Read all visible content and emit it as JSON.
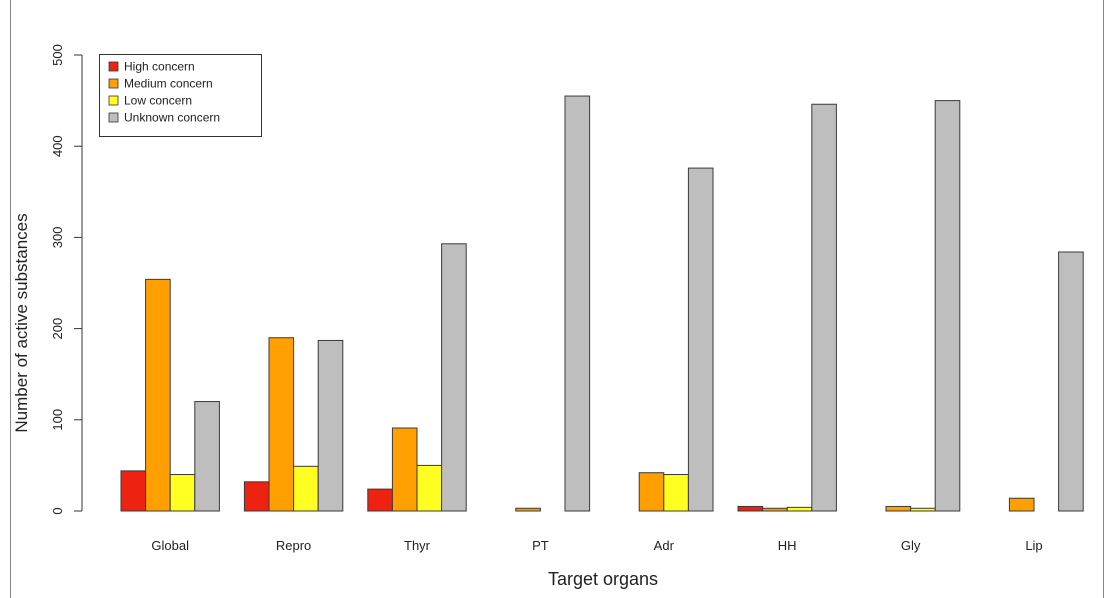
{
  "chart_data": {
    "type": "bar",
    "xlabel": "Target organs",
    "ylabel": "Number of active substances",
    "ylim": [
      0,
      500
    ],
    "yticks": [
      0,
      100,
      200,
      300,
      400,
      500
    ],
    "grid": false,
    "legend_position": "top-left",
    "categories": [
      "Global",
      "Repro",
      "Thyr",
      "PT",
      "Adr",
      "HH",
      "Gly",
      "Lip"
    ],
    "series": [
      {
        "name": "High concern",
        "color": "#ee2211",
        "values": [
          44,
          32,
          24,
          0,
          0,
          5,
          0,
          0
        ]
      },
      {
        "name": "Medium concern",
        "color": "#ff9f00",
        "values": [
          254,
          190,
          91,
          3,
          42,
          3,
          5,
          14
        ]
      },
      {
        "name": "Low concern",
        "color": "#ffff22",
        "values": [
          40,
          49,
          50,
          0,
          40,
          4,
          3,
          0
        ]
      },
      {
        "name": "Unknown concern",
        "color": "#bebebe",
        "values": [
          120,
          187,
          293,
          455,
          376,
          446,
          450,
          284
        ]
      }
    ]
  }
}
